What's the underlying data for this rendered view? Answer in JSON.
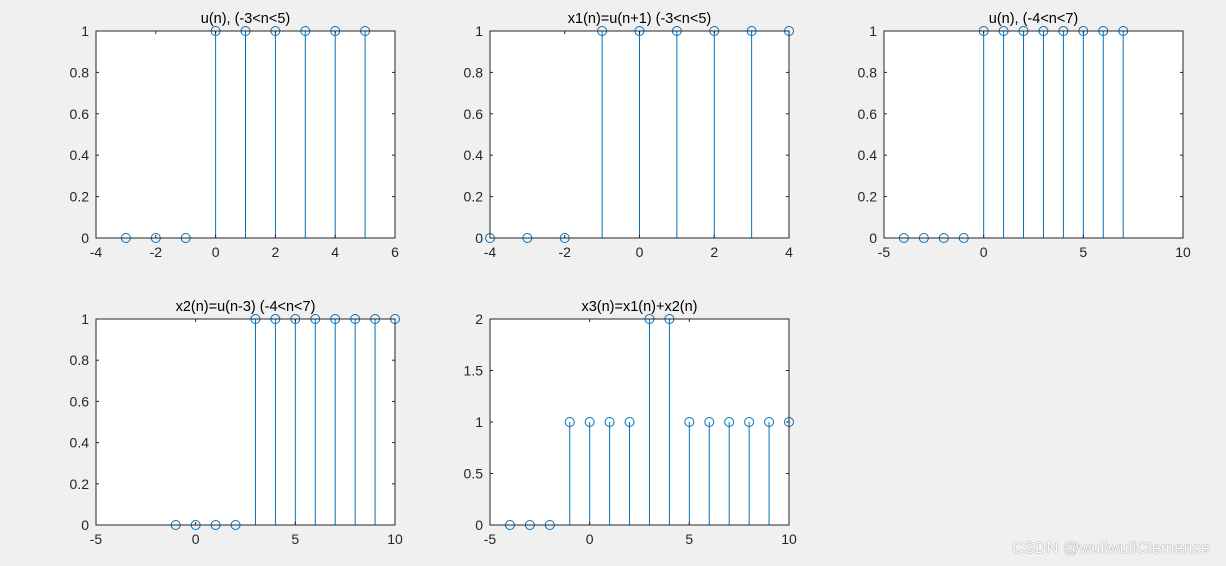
{
  "figure": {
    "background": "#f0f0f0",
    "axes_background": "#ffffff",
    "stem_color": "#0072bd",
    "watermark": "CSDN @wuliwuliClemence"
  },
  "chart_data": [
    {
      "type": "stem",
      "title": "u(n), (-3<n<5)",
      "x": [
        -3,
        -2,
        -1,
        0,
        1,
        2,
        3,
        4,
        5
      ],
      "y": [
        0,
        0,
        0,
        1,
        1,
        1,
        1,
        1,
        1
      ],
      "xlim": [
        -4,
        6
      ],
      "ylim": [
        0,
        1
      ],
      "xticks": [
        -4,
        -2,
        0,
        2,
        4,
        6
      ],
      "yticks": [
        0,
        0.2,
        0.4,
        0.6,
        0.8,
        1
      ],
      "xtick_labels": [
        "-4",
        "-2",
        "0",
        "2",
        "4",
        "6"
      ],
      "ytick_labels": [
        "0",
        "0.2",
        "0.4",
        "0.6",
        "0.8",
        "1"
      ],
      "grid": false
    },
    {
      "type": "stem",
      "title": "x1(n)=u(n+1)  (-3<n<5)",
      "x": [
        -4,
        -3,
        -2,
        -1,
        0,
        1,
        2,
        3,
        4
      ],
      "y": [
        0,
        0,
        0,
        1,
        1,
        1,
        1,
        1,
        1
      ],
      "xlim": [
        -4,
        4
      ],
      "ylim": [
        0,
        1
      ],
      "xticks": [
        -4,
        -2,
        0,
        2,
        4
      ],
      "yticks": [
        0,
        0.2,
        0.4,
        0.6,
        0.8,
        1
      ],
      "xtick_labels": [
        "-4",
        "-2",
        "0",
        "2",
        "4"
      ],
      "ytick_labels": [
        "0",
        "0.2",
        "0.4",
        "0.6",
        "0.8",
        "1"
      ],
      "grid": false
    },
    {
      "type": "stem",
      "title": "u(n), (-4<n<7)",
      "x": [
        -4,
        -3,
        -2,
        -1,
        0,
        1,
        2,
        3,
        4,
        5,
        6,
        7
      ],
      "y": [
        0,
        0,
        0,
        0,
        1,
        1,
        1,
        1,
        1,
        1,
        1,
        1
      ],
      "xlim": [
        -5,
        10
      ],
      "ylim": [
        0,
        1
      ],
      "xticks": [
        -5,
        0,
        5,
        10
      ],
      "yticks": [
        0,
        0.2,
        0.4,
        0.6,
        0.8,
        1
      ],
      "xtick_labels": [
        "-5",
        "0",
        "5",
        "10"
      ],
      "ytick_labels": [
        "0",
        "0.2",
        "0.4",
        "0.6",
        "0.8",
        "1"
      ],
      "grid": false
    },
    {
      "type": "stem",
      "title": "x2(n)=u(n-3) (-4<n<7)",
      "x": [
        -1,
        0,
        1,
        2,
        3,
        4,
        5,
        6,
        7,
        8,
        9,
        10
      ],
      "y": [
        0,
        0,
        0,
        0,
        1,
        1,
        1,
        1,
        1,
        1,
        1,
        1
      ],
      "xlim": [
        -5,
        10
      ],
      "ylim": [
        0,
        1
      ],
      "xticks": [
        -5,
        0,
        5,
        10
      ],
      "yticks": [
        0,
        0.2,
        0.4,
        0.6,
        0.8,
        1
      ],
      "xtick_labels": [
        "-5",
        "0",
        "5",
        "10"
      ],
      "ytick_labels": [
        "0",
        "0.2",
        "0.4",
        "0.6",
        "0.8",
        "1"
      ],
      "grid": false
    },
    {
      "type": "stem",
      "title": "x3(n)=x1(n)+x2(n)",
      "x": [
        -4,
        -3,
        -2,
        -1,
        0,
        1,
        2,
        3,
        4,
        5,
        6,
        7,
        8,
        9,
        10
      ],
      "y": [
        0,
        0,
        0,
        1,
        1,
        1,
        1,
        2,
        2,
        1,
        1,
        1,
        1,
        1,
        1
      ],
      "xlim": [
        -5,
        10
      ],
      "ylim": [
        0,
        2
      ],
      "xticks": [
        -5,
        0,
        5,
        10
      ],
      "yticks": [
        0,
        0.5,
        1,
        1.5,
        2
      ],
      "xtick_labels": [
        "-5",
        "0",
        "5",
        "10"
      ],
      "ytick_labels": [
        "0",
        "0.5",
        "1",
        "1.5",
        "2"
      ],
      "grid": false
    }
  ]
}
